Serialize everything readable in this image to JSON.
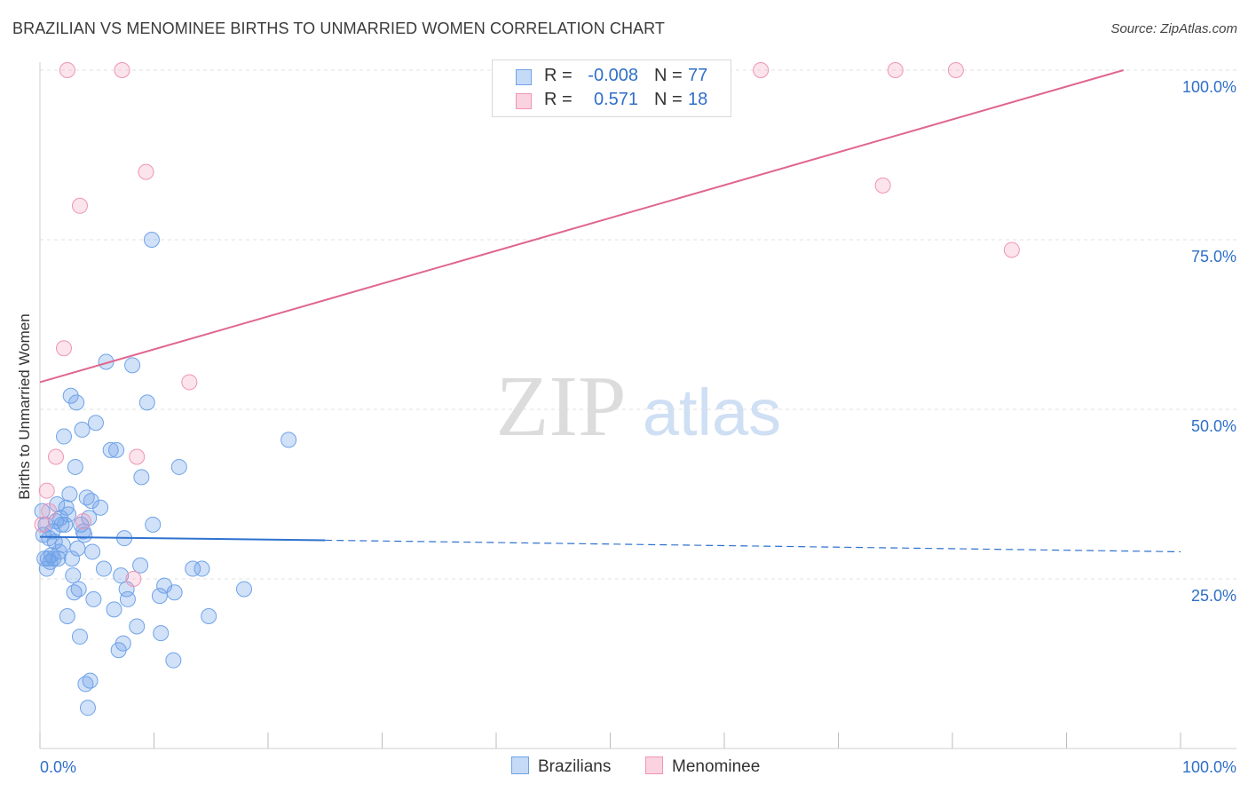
{
  "header": {
    "title": "BRAZILIAN VS MENOMINEE BIRTHS TO UNMARRIED WOMEN CORRELATION CHART",
    "source": "Source: ZipAtlas.com"
  },
  "watermark": {
    "zip": "ZIP",
    "atlas": "atlas"
  },
  "legend": {
    "rows": [
      {
        "r_label": "R =",
        "r_value": "-0.008",
        "n_label": "N =",
        "n_value": "77",
        "color": "#6fa3e8"
      },
      {
        "r_label": "R =",
        "r_value": "0.571",
        "n_label": "N =",
        "n_value": "18",
        "color": "#f095b2"
      }
    ]
  },
  "bottom_legend": {
    "series1": "Brazilians",
    "series2": "Menominee"
  },
  "chart_data": {
    "type": "scatter",
    "title": "BRAZILIAN VS MENOMINEE BIRTHS TO UNMARRIED WOMEN CORRELATION CHART",
    "xlabel": "",
    "ylabel": "Births to Unmarried Women",
    "xlim": [
      0,
      100
    ],
    "ylim": [
      0,
      100
    ],
    "x_tick_labels": {
      "min": "0.0%",
      "max": "100.0%"
    },
    "y_tick_labels": [
      "25.0%",
      "50.0%",
      "75.0%",
      "100.0%"
    ],
    "y_tick_values": [
      25,
      50,
      75,
      100
    ],
    "grid": true,
    "series": [
      {
        "name": "Brazilians",
        "color": "#6fa3e8",
        "points": [
          [
            0.3,
            31.5
          ],
          [
            0.4,
            28.0
          ],
          [
            0.5,
            33.0
          ],
          [
            0.6,
            26.5
          ],
          [
            0.7,
            28.0
          ],
          [
            0.8,
            31.0
          ],
          [
            0.9,
            27.5
          ],
          [
            1.0,
            28.5
          ],
          [
            1.1,
            32.0
          ],
          [
            1.2,
            28.0
          ],
          [
            1.3,
            30.5
          ],
          [
            1.4,
            33.5
          ],
          [
            1.5,
            36.0
          ],
          [
            1.6,
            28.0
          ],
          [
            1.7,
            29.0
          ],
          [
            1.8,
            34.0
          ],
          [
            1.9,
            33.0
          ],
          [
            2.0,
            30.0
          ],
          [
            2.1,
            46.0
          ],
          [
            2.2,
            33.0
          ],
          [
            2.3,
            35.5
          ],
          [
            2.4,
            19.5
          ],
          [
            2.5,
            34.5
          ],
          [
            2.6,
            37.5
          ],
          [
            2.7,
            52.0
          ],
          [
            2.8,
            28.0
          ],
          [
            2.9,
            25.5
          ],
          [
            3.0,
            23.0
          ],
          [
            3.1,
            41.5
          ],
          [
            3.2,
            51.0
          ],
          [
            3.3,
            29.5
          ],
          [
            3.4,
            23.5
          ],
          [
            3.5,
            16.5
          ],
          [
            3.6,
            33.0
          ],
          [
            3.7,
            47.0
          ],
          [
            3.8,
            32.0
          ],
          [
            3.9,
            31.5
          ],
          [
            4.0,
            9.5
          ],
          [
            4.1,
            37.0
          ],
          [
            4.2,
            6.0
          ],
          [
            4.3,
            34.0
          ],
          [
            4.4,
            10.0
          ],
          [
            4.5,
            36.5
          ],
          [
            4.6,
            29.0
          ],
          [
            4.7,
            22.0
          ],
          [
            4.9,
            48.0
          ],
          [
            5.3,
            35.5
          ],
          [
            5.6,
            26.5
          ],
          [
            5.8,
            57.0
          ],
          [
            6.2,
            44.0
          ],
          [
            6.5,
            20.5
          ],
          [
            6.7,
            44.0
          ],
          [
            6.9,
            14.5
          ],
          [
            7.1,
            25.5
          ],
          [
            7.3,
            15.5
          ],
          [
            7.4,
            31.0
          ],
          [
            7.6,
            23.5
          ],
          [
            7.7,
            22.0
          ],
          [
            8.1,
            56.5
          ],
          [
            8.5,
            18.0
          ],
          [
            8.8,
            27.0
          ],
          [
            8.9,
            40.0
          ],
          [
            9.4,
            51.0
          ],
          [
            9.8,
            75.0
          ],
          [
            9.9,
            33.0
          ],
          [
            10.5,
            22.5
          ],
          [
            10.6,
            17.0
          ],
          [
            10.9,
            24.0
          ],
          [
            11.7,
            13.0
          ],
          [
            11.8,
            23.0
          ],
          [
            12.2,
            41.5
          ],
          [
            13.4,
            26.5
          ],
          [
            14.2,
            26.5
          ],
          [
            14.8,
            19.5
          ],
          [
            17.9,
            23.5
          ],
          [
            21.8,
            45.5
          ],
          [
            0.2,
            35.0
          ]
        ],
        "trend": {
          "x": [
            0,
            25,
            100
          ],
          "y": [
            31.2,
            30.7,
            29.0
          ],
          "solid_until": 25
        }
      },
      {
        "name": "Menominee",
        "color": "#f095b2",
        "points": [
          [
            0.2,
            33.0
          ],
          [
            0.6,
            38.0
          ],
          [
            0.8,
            35.0
          ],
          [
            1.4,
            43.0
          ],
          [
            2.1,
            59.0
          ],
          [
            2.4,
            100.0
          ],
          [
            3.5,
            80.0
          ],
          [
            3.8,
            33.5
          ],
          [
            7.2,
            100.0
          ],
          [
            8.2,
            25.0
          ],
          [
            8.5,
            43.0
          ],
          [
            9.3,
            85.0
          ],
          [
            13.1,
            54.0
          ],
          [
            63.2,
            100.0
          ],
          [
            73.9,
            83.0
          ],
          [
            75.0,
            100.0
          ],
          [
            80.3,
            100.0
          ],
          [
            85.2,
            73.5
          ]
        ],
        "trend": {
          "x": [
            0,
            95
          ],
          "y": [
            54.0,
            100.0
          ]
        }
      }
    ]
  }
}
